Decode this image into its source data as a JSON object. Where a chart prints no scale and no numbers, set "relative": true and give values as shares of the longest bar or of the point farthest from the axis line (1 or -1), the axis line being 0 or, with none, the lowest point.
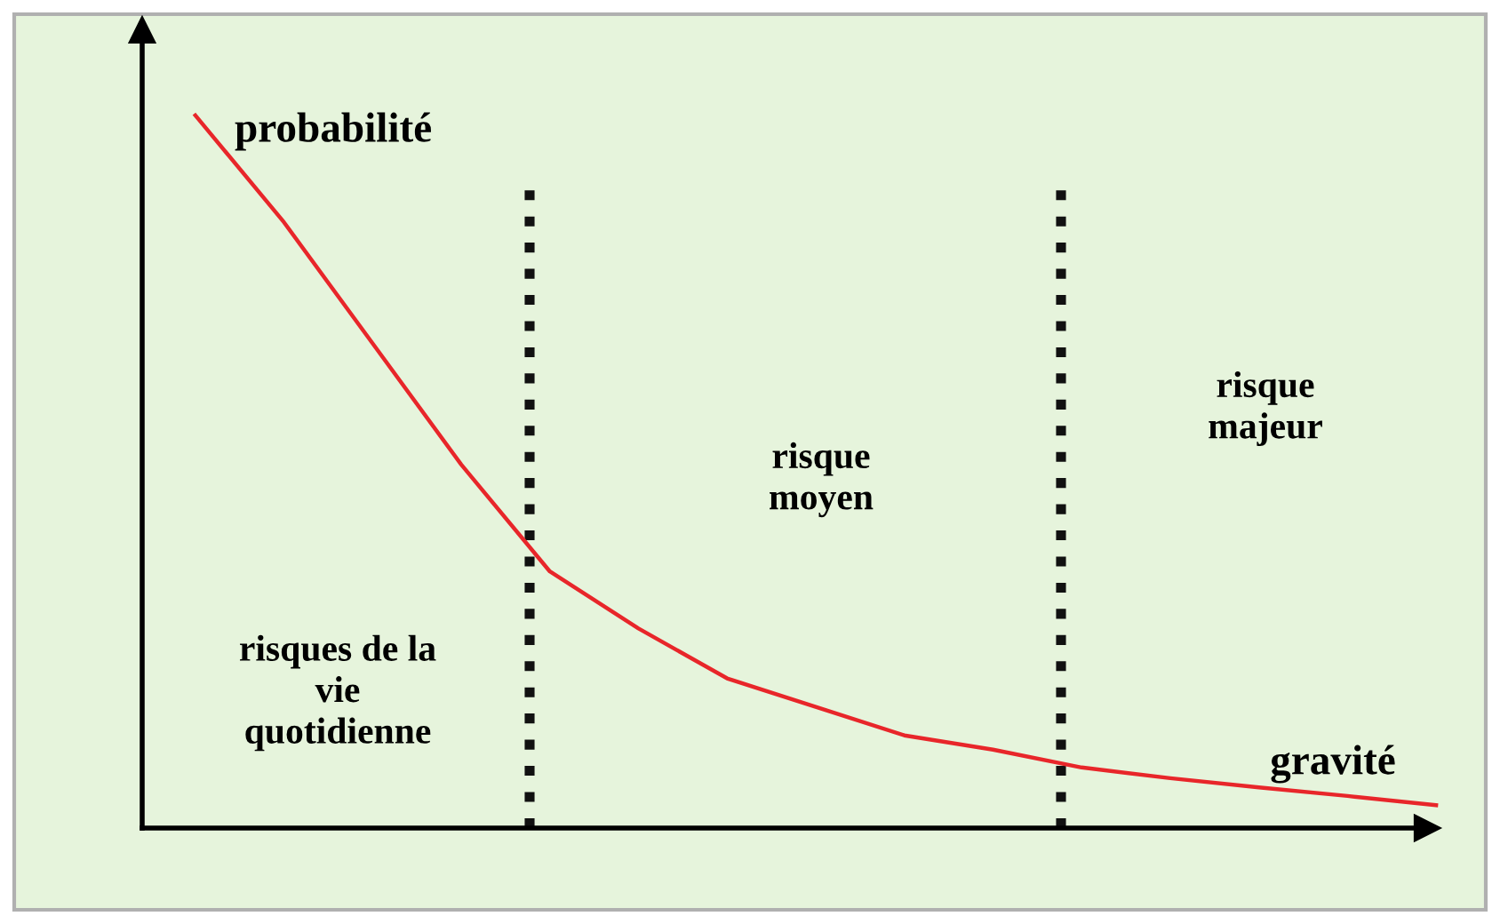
{
  "chart_data": {
    "type": "line",
    "relative": true,
    "xlabel": "gravité",
    "ylabel": "probabilité",
    "categories": [
      null,
      null,
      null,
      null,
      null,
      null,
      null,
      null,
      null,
      null,
      null,
      null,
      null,
      null,
      null
    ],
    "series": [
      {
        "color": "#e8262a",
        "values": [
          1,
          0.85,
          0.68,
          0.51,
          0.36,
          0.28,
          0.21,
          0.17,
          0.13,
          0.11,
          0.085,
          0.07,
          0.057,
          0.045,
          0.032
        ]
      }
    ],
    "annotations": [
      "risques de la\nvie\nquotidienne",
      "risque\nmoyen",
      "risque\nmajeur"
    ],
    "grid": false,
    "legend": false,
    "marker": "none",
    "line_style": "solid"
  }
}
